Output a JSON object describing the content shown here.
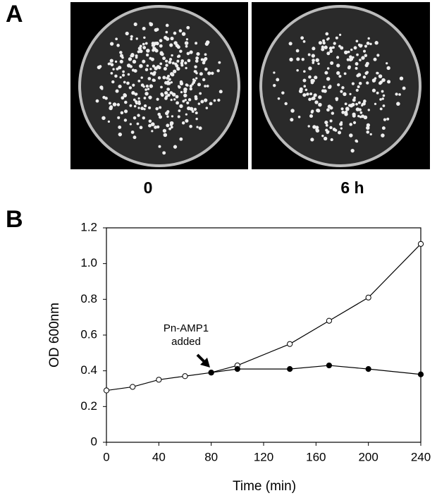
{
  "figure": {
    "panel_labels": [
      "A",
      "B"
    ],
    "plate_labels": [
      "0",
      "6 h"
    ]
  },
  "chart_data": {
    "type": "line",
    "xlabel": "Time (min)",
    "ylabel": "OD 600nm",
    "annotation": [
      "Pn-AMP1",
      "added"
    ],
    "xlim": [
      0,
      240
    ],
    "xticks": [
      0,
      40,
      80,
      120,
      160,
      200,
      240
    ],
    "ylim": [
      0,
      1.2
    ],
    "yticks": [
      0,
      0.2,
      0.4,
      0.6,
      0.8,
      {
        "value": 1.0,
        "label": "1.0"
      },
      1.2
    ],
    "grid": false,
    "series": [
      {
        "color": "#000000",
        "marker": "open",
        "x": [
          0,
          20,
          40,
          60,
          80,
          100,
          140,
          170,
          200,
          240
        ],
        "values": [
          0.29,
          0.31,
          0.35,
          0.37,
          0.39,
          0.43,
          0.55,
          0.68,
          0.81,
          1.11
        ]
      },
      {
        "color": "#000000",
        "marker": "filled",
        "x": [
          80,
          100,
          140,
          170,
          200,
          240
        ],
        "values": [
          0.39,
          0.41,
          0.41,
          0.43,
          0.41,
          0.38
        ]
      }
    ]
  }
}
